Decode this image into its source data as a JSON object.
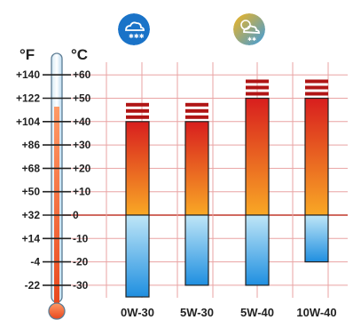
{
  "units": {
    "fahrenheit": "°F",
    "celsius": "°C"
  },
  "icons": [
    {
      "name": "snowy-cloud-icon",
      "color": "#1a73c8"
    },
    {
      "name": "sun-cloud-snow-icon",
      "color": "#f5b51b"
    }
  ],
  "colors": {
    "grid": "#e9a3a3",
    "zero_line": "#c0392b",
    "warm_top": "#d81e1e",
    "warm_bottom": "#f9a825",
    "cold_top": "#bfe6f7",
    "cold_bottom": "#1f8fe0",
    "cap": "#b01515"
  },
  "chart_data": {
    "type": "bar",
    "categories": [
      "0W-30",
      "5W-30",
      "5W-40",
      "10W-40"
    ],
    "series": [
      {
        "values_max_c": [
          40,
          40,
          50,
          50
        ],
        "values_min_c": [
          -35,
          -30,
          -30,
          -20
        ]
      }
    ],
    "y_scale_celsius": {
      "min": -35,
      "max": 65
    },
    "y_ticks_celsius": [
      "+60",
      "+50",
      "+40",
      "+30",
      "+20",
      "+10",
      "0",
      "-10",
      "-20",
      "-30"
    ],
    "y_ticks_fahrenheit": [
      "+140",
      "+122",
      "+104",
      "+86",
      "+68",
      "+50",
      "+32",
      "+14",
      "-4",
      "-22"
    ],
    "grid": true
  }
}
